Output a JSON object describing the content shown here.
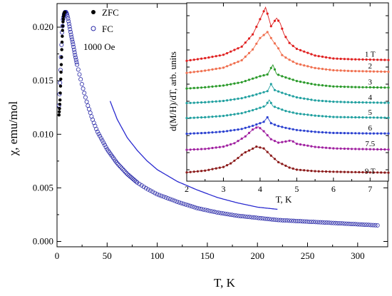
{
  "chart_data": [
    {
      "type": "scatter",
      "xlabel": "T, K",
      "ylabel": "χ, emu/mol",
      "xlim": [
        0,
        330
      ],
      "ylim": [
        -0.0005,
        0.0222
      ],
      "xticks": [
        "0",
        "50",
        "100",
        "150",
        "200",
        "250",
        "300"
      ],
      "yticks": [
        "0.000",
        "0.005",
        "0.010",
        "0.015",
        "0.020"
      ],
      "annotation": "1000 Oe",
      "legend": [
        {
          "name": "ZFC",
          "marker": "filled-circle",
          "color": "#000000"
        },
        {
          "name": "FC",
          "marker": "open-circle",
          "color": "#2a2aa8"
        }
      ],
      "series": [
        {
          "name": "ZFC",
          "x": [
            2,
            2.5,
            3,
            3.5,
            4,
            4.5,
            5,
            5.5,
            6,
            6.5,
            7,
            7.5,
            8
          ],
          "y": [
            0.0118,
            0.0124,
            0.0132,
            0.0145,
            0.0158,
            0.0172,
            0.0186,
            0.0197,
            0.0205,
            0.021,
            0.0213,
            0.0214,
            0.0214
          ]
        },
        {
          "name": "FC",
          "x": [
            2,
            3,
            4,
            5,
            6,
            7,
            8,
            9,
            10,
            11,
            12,
            14,
            16,
            18,
            20,
            25,
            30,
            35,
            40,
            50,
            60,
            70,
            80,
            90,
            100,
            120,
            140,
            160,
            180,
            200,
            220,
            240,
            260,
            280,
            300,
            320
          ],
          "y": [
            0.0127,
            0.0148,
            0.0172,
            0.0195,
            0.0207,
            0.0212,
            0.0214,
            0.0214,
            0.0212,
            0.0208,
            0.0203,
            0.0193,
            0.0184,
            0.0174,
            0.0165,
            0.0146,
            0.0129,
            0.0115,
            0.0103,
            0.0086,
            0.0073,
            0.0063,
            0.0055,
            0.0049,
            0.0044,
            0.0037,
            0.0031,
            0.0027,
            0.0024,
            0.0022,
            0.002,
            0.0019,
            0.0018,
            0.0017,
            0.0016,
            0.0015
          ]
        },
        {
          "name": "fit",
          "style": "line",
          "color": "#2a2ad0",
          "x": [
            53,
            60,
            70,
            80,
            90,
            100,
            120,
            140,
            160,
            180,
            200,
            220
          ],
          "y": [
            0.0131,
            0.0114,
            0.0097,
            0.0085,
            0.0075,
            0.0067,
            0.0056,
            0.0048,
            0.0041,
            0.0036,
            0.0032,
            0.003
          ]
        }
      ]
    },
    {
      "type": "line",
      "xlabel": "T, K",
      "ylabel": "d(M/H)/dT, arb. units",
      "xlim": [
        2,
        7.5
      ],
      "xticks": [
        "2",
        "3",
        "4",
        "5",
        "6",
        "7"
      ],
      "series": [
        {
          "name": "1 T",
          "color": "#e02020",
          "x": [
            2,
            2.5,
            3,
            3.5,
            3.8,
            4.0,
            4.15,
            4.3,
            4.45,
            4.55,
            4.65,
            4.8,
            5.0,
            5.5,
            6,
            6.5,
            7,
            7.5
          ],
          "y": [
            -0.08,
            -0.01,
            0.08,
            0.3,
            0.63,
            1.04,
            1.36,
            0.85,
            1.07,
            0.93,
            0.64,
            0.4,
            0.24,
            0.06,
            -0.02,
            -0.04,
            -0.05,
            -0.06
          ]
        },
        {
          "name": "2",
          "color": "#f07050",
          "x": [
            2,
            2.5,
            3,
            3.5,
            3.8,
            4.0,
            4.2,
            4.35,
            4.5,
            4.6,
            4.75,
            5.0,
            5.5,
            6,
            6.5,
            7,
            7.5
          ],
          "y": [
            -0.08,
            -0.02,
            0.06,
            0.26,
            0.55,
            0.86,
            1.02,
            0.78,
            0.58,
            0.4,
            0.3,
            0.17,
            0.05,
            -0.01,
            -0.03,
            -0.04,
            -0.05
          ]
        },
        {
          "name": "3",
          "color": "#2a9a2a",
          "x": [
            2,
            2.5,
            3,
            3.5,
            3.8,
            4.0,
            4.2,
            4.35,
            4.45,
            4.6,
            4.8,
            5.0,
            5.5,
            6,
            6.5,
            7,
            7.5
          ],
          "y": [
            -0.05,
            -0.01,
            0.05,
            0.16,
            0.28,
            0.36,
            0.42,
            0.74,
            0.43,
            0.36,
            0.28,
            0.2,
            0.08,
            0.02,
            0,
            -0.01,
            -0.02
          ]
        },
        {
          "name": "4",
          "color": "#20a0a0",
          "x": [
            2,
            2.5,
            3,
            3.5,
            3.8,
            4.0,
            4.2,
            4.3,
            4.4,
            4.6,
            4.8,
            5.0,
            5.5,
            6,
            6.5,
            7,
            7.5
          ],
          "y": [
            -0.04,
            -0.01,
            0.04,
            0.14,
            0.24,
            0.32,
            0.4,
            0.66,
            0.44,
            0.34,
            0.25,
            0.17,
            0.06,
            0.01,
            -0.01,
            -0.02,
            -0.03
          ]
        },
        {
          "name": "5",
          "color": "#20a0a0",
          "x": [
            2,
            2.5,
            3,
            3.5,
            3.8,
            4.0,
            4.15,
            4.25,
            4.35,
            4.5,
            4.7,
            5.0,
            5.5,
            6,
            6.5,
            7,
            7.5
          ],
          "y": [
            -0.04,
            -0.01,
            0.04,
            0.14,
            0.25,
            0.34,
            0.41,
            0.63,
            0.4,
            0.32,
            0.22,
            0.13,
            0.05,
            0,
            -0.01,
            -0.02,
            -0.03
          ]
        },
        {
          "name": "6",
          "color": "#2a40d0",
          "x": [
            2,
            2.5,
            3,
            3.5,
            3.8,
            4.0,
            4.1,
            4.2,
            4.3,
            4.45,
            4.7,
            5.0,
            5.5,
            6,
            6.5,
            7,
            7.5
          ],
          "y": [
            -0.04,
            -0.01,
            0.04,
            0.14,
            0.26,
            0.36,
            0.41,
            0.58,
            0.36,
            0.27,
            0.18,
            0.1,
            0.03,
            -0.01,
            -0.02,
            -0.03,
            -0.03
          ]
        },
        {
          "name": "7.5",
          "color": "#a020a0",
          "x": [
            2,
            2.5,
            3,
            3.3,
            3.6,
            3.8,
            3.95,
            4.1,
            4.3,
            4.5,
            4.7,
            4.85,
            5.0,
            5.5,
            6,
            6.5,
            7,
            7.5
          ],
          "y": [
            -0.05,
            -0.02,
            0.06,
            0.18,
            0.42,
            0.66,
            0.76,
            0.6,
            0.32,
            0.2,
            0.24,
            0.28,
            0.16,
            0.05,
            0,
            -0.02,
            -0.03,
            -0.04
          ]
        },
        {
          "name": "9 T",
          "color": "#8b1a1a",
          "x": [
            2,
            2.5,
            3,
            3.2,
            3.4,
            3.55,
            3.65,
            3.75,
            3.9,
            4.1,
            4.3,
            4.5,
            4.8,
            5.0,
            5.5,
            6,
            6.5,
            7,
            7.5
          ],
          "y": [
            -0.04,
            0.02,
            0.14,
            0.26,
            0.44,
            0.6,
            0.66,
            0.72,
            0.82,
            0.76,
            0.52,
            0.3,
            0.12,
            0.05,
            0,
            -0.02,
            -0.03,
            -0.04,
            -0.05
          ]
        }
      ]
    }
  ]
}
